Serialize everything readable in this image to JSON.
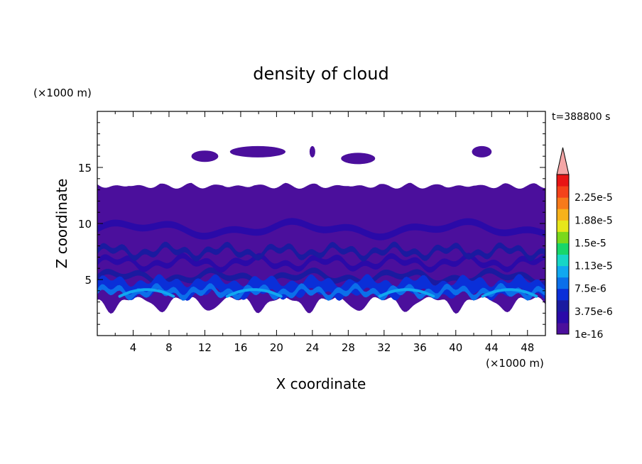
{
  "chart_data": {
    "type": "heatmap",
    "title": "density of cloud",
    "time_label": "t=388800 s",
    "xlabel": "X coordinate",
    "ylabel": "Z coordinate",
    "x_unit": "(×1000 m)",
    "y_unit": "(×1000 m)",
    "xlim": [
      0,
      50
    ],
    "ylim": [
      0,
      20
    ],
    "x_ticks": [
      4,
      8,
      12,
      16,
      20,
      24,
      28,
      32,
      36,
      40,
      44,
      48
    ],
    "y_ticks": [
      5,
      10,
      15
    ],
    "colorbar": {
      "extend": "max",
      "extend_color": "#f4a6a6",
      "levels": [
        {
          "label": "1e-16",
          "color": "#4b0f9c"
        },
        {
          "label": "",
          "color": "#2a0aa8"
        },
        {
          "label": "3.75e-6",
          "color": "#1a1aa0"
        },
        {
          "label": "",
          "color": "#0a2fd8"
        },
        {
          "label": "7.5e-6",
          "color": "#0b6fea"
        },
        {
          "label": "",
          "color": "#11a8f0"
        },
        {
          "label": "1.13e-5",
          "color": "#17d6c6"
        },
        {
          "label": "",
          "color": "#18d66a"
        },
        {
          "label": "1.5e-5",
          "color": "#7ad81c"
        },
        {
          "label": "",
          "color": "#e6e61a"
        },
        {
          "label": "1.88e-5",
          "color": "#f7b21a"
        },
        {
          "label": "",
          "color": "#f77a1a"
        },
        {
          "label": "2.25e-5",
          "color": "#f4421a"
        },
        {
          "label": "",
          "color": "#e81515"
        }
      ]
    },
    "field": {
      "cloud_base_km": 2.6,
      "cloud_top_km": 13.5,
      "upper_patches": [
        [
          10.5,
          13.5,
          16.0
        ],
        [
          14.8,
          21.0,
          16.4
        ],
        [
          23.8,
          24.2,
          16.4
        ],
        [
          27.2,
          31.0,
          15.8
        ],
        [
          41.8,
          44.0,
          16.4
        ]
      ],
      "bright_layer_km": 3.9,
      "mid_layers_km": [
        5.2,
        6.5,
        7.5
      ]
    }
  }
}
